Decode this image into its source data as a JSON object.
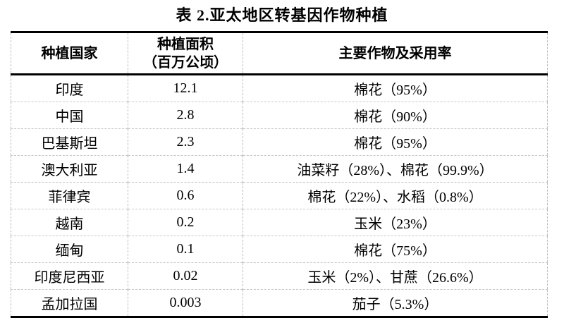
{
  "title": "表 2.亚太地区转基因作物种植",
  "table": {
    "headers": [
      "种植国家",
      "种植面积\n（百万公顷）",
      "主要作物及采用率"
    ],
    "rows": [
      {
        "country": "印度",
        "area": "12.1",
        "crops": "棉花（95%）"
      },
      {
        "country": "中国",
        "area": "2.8",
        "crops": "棉花（90%）"
      },
      {
        "country": "巴基斯坦",
        "area": "2.3",
        "crops": "棉花（95%）"
      },
      {
        "country": "澳大利亚",
        "area": "1.4",
        "crops": "油菜籽（28%）、棉花（99.9%）"
      },
      {
        "country": "菲律宾",
        "area": "0.6",
        "crops": "棉花（22%）、水稻（0.8%）"
      },
      {
        "country": "越南",
        "area": "0.2",
        "crops": "玉米（23%）"
      },
      {
        "country": "缅甸",
        "area": "0.1",
        "crops": "棉花（75%）"
      },
      {
        "country": "印度尼西亚",
        "area": "0.02",
        "crops": "玉米（2%）、甘蔗（26.6%）"
      },
      {
        "country": "孟加拉国",
        "area": "0.003",
        "crops": "茄子（5.3%）"
      }
    ]
  },
  "colors": {
    "text": "#000000",
    "heavy_rule": "#000000",
    "dashed_grid": "#bdbdbd",
    "background": "#ffffff"
  }
}
